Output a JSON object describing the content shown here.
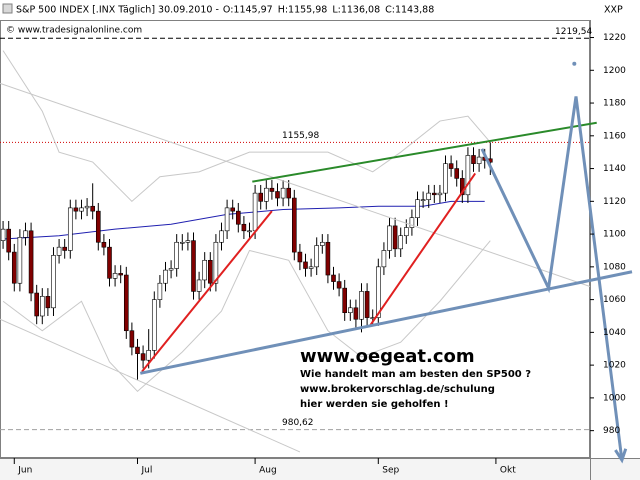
{
  "chart_data": {
    "type": "candlestick",
    "header": {
      "symbol": "S&P 500 INDEX [.INX Täglich] 30.09.2010 -",
      "ohlc": [
        "O:1145,97",
        "H:1155,98",
        "L:1136,08",
        "C:1143,88"
      ],
      "ohlc_colors": [
        "#d00000",
        "#000000",
        "#000000",
        "#008000"
      ],
      "corner": "XXP",
      "copyright": "© www.tradesignalonline.com"
    },
    "x": [
      0,
      1,
      2,
      3,
      4,
      5,
      6,
      7,
      8,
      9,
      10,
      11,
      12,
      13,
      14,
      15,
      16,
      17,
      18,
      19,
      20,
      21,
      22,
      23,
      24,
      25,
      26,
      27,
      28,
      29,
      30,
      31,
      32,
      33,
      34,
      35,
      36,
      37,
      38,
      39,
      40,
      41,
      42,
      43,
      44,
      45,
      46,
      47,
      48,
      49,
      50,
      51,
      52,
      53,
      54,
      55,
      56,
      57,
      58,
      59,
      60,
      61,
      62,
      63,
      64,
      65,
      66,
      67,
      68,
      69,
      70,
      71,
      72,
      73,
      74,
      75,
      76,
      77,
      78,
      79,
      80,
      81,
      82,
      83,
      84,
      85,
      86,
      87
    ],
    "open": [
      1096,
      1103,
      1089,
      1070,
      1098,
      1102,
      1064,
      1050,
      1062,
      1055,
      1087,
      1092,
      1090,
      1116,
      1114,
      1116,
      1117,
      1114,
      1095,
      1092,
      1073,
      1076,
      1075,
      1041,
      1031,
      1027,
      1023,
      1029,
      1060,
      1070,
      1078,
      1079,
      1095,
      1095,
      1096,
      1065,
      1072,
      1084,
      1070,
      1095,
      1102,
      1116,
      1114,
      1106,
      1102,
      1102,
      1125,
      1120,
      1128,
      1126,
      1122,
      1128,
      1122,
      1089,
      1083,
      1079,
      1080,
      1093,
      1095,
      1075,
      1071,
      1067,
      1052,
      1055,
      1048,
      1065,
      1049,
      1049,
      1080,
      1090,
      1105,
      1091,
      1099,
      1104,
      1110,
      1121,
      1121,
      1125,
      1124,
      1125,
      1143,
      1140,
      1134,
      1124,
      1148,
      1143,
      1147,
      1145.97
    ],
    "high": [
      1108,
      1108,
      1094,
      1103,
      1107,
      1107,
      1069,
      1067,
      1067,
      1092,
      1097,
      1097,
      1121,
      1121,
      1121,
      1122,
      1131,
      1119,
      1100,
      1097,
      1081,
      1081,
      1080,
      1046,
      1036,
      1032,
      1042,
      1065,
      1075,
      1083,
      1084,
      1100,
      1100,
      1101,
      1101,
      1077,
      1089,
      1089,
      1100,
      1107,
      1121,
      1121,
      1119,
      1111,
      1107,
      1130,
      1130,
      1133,
      1133,
      1131,
      1133,
      1133,
      1127,
      1094,
      1088,
      1085,
      1098,
      1100,
      1100,
      1080,
      1076,
      1072,
      1060,
      1060,
      1070,
      1070,
      1054,
      1085,
      1095,
      1110,
      1110,
      1104,
      1109,
      1115,
      1126,
      1126,
      1130,
      1130,
      1130,
      1148,
      1148,
      1145,
      1139,
      1153,
      1153,
      1152,
      1152,
      1155.98
    ],
    "low": [
      1091,
      1084,
      1065,
      1065,
      1093,
      1059,
      1045,
      1045,
      1050,
      1050,
      1082,
      1085,
      1085,
      1109,
      1109,
      1111,
      1109,
      1090,
      1087,
      1068,
      1068,
      1070,
      1036,
      1026,
      1011,
      1018,
      1018,
      1024,
      1055,
      1065,
      1073,
      1074,
      1090,
      1090,
      1060,
      1060,
      1067,
      1065,
      1065,
      1090,
      1097,
      1109,
      1101,
      1097,
      1097,
      1097,
      1115,
      1115,
      1121,
      1117,
      1117,
      1117,
      1084,
      1078,
      1074,
      1074,
      1075,
      1088,
      1070,
      1066,
      1062,
      1047,
      1047,
      1043,
      1040,
      1044,
      1044,
      1044,
      1075,
      1085,
      1086,
      1086,
      1094,
      1099,
      1105,
      1116,
      1116,
      1119,
      1119,
      1120,
      1135,
      1129,
      1119,
      1119,
      1138,
      1138,
      1140,
      1136.08
    ],
    "close": [
      1103,
      1089,
      1070,
      1098,
      1102,
      1064,
      1050,
      1062,
      1055,
      1087,
      1092,
      1090,
      1116,
      1114,
      1116,
      1117,
      1114,
      1095,
      1092,
      1073,
      1076,
      1075,
      1041,
      1031,
      1027,
      1023,
      1029,
      1060,
      1070,
      1078,
      1079,
      1095,
      1095,
      1096,
      1065,
      1072,
      1084,
      1070,
      1095,
      1102,
      1116,
      1114,
      1106,
      1102,
      1102,
      1125,
      1120,
      1128,
      1126,
      1122,
      1128,
      1122,
      1089,
      1083,
      1079,
      1080,
      1093,
      1095,
      1075,
      1071,
      1067,
      1052,
      1055,
      1048,
      1065,
      1049,
      1049,
      1080,
      1090,
      1105,
      1091,
      1099,
      1104,
      1110,
      1121,
      1121,
      1125,
      1124,
      1125,
      1143,
      1140,
      1134,
      1124,
      1148,
      1143,
      1147,
      1145,
      1143.88
    ],
    "up_color": "#ffffff",
    "down_color": "#800000",
    "wick_color": "#000000",
    "xlim": [
      -0.55,
      104.8
    ],
    "ylim": [
      963.3,
      1230.7
    ],
    "xticks": [
      {
        "value": 2,
        "label": "Jun"
      },
      {
        "value": 24,
        "label": "Jul"
      },
      {
        "value": 45,
        "label": "Aug"
      },
      {
        "value": 67,
        "label": "Sep"
      },
      {
        "value": 88,
        "label": "Okt"
      }
    ],
    "yticks": [
      980,
      1000,
      1020,
      1040,
      1060,
      1080,
      1100,
      1120,
      1140,
      1160,
      1180,
      1200,
      1220
    ],
    "levels": [
      {
        "value": 1219.54,
        "label": "1219,54",
        "color": "#000000"
      },
      {
        "value": 1155.98,
        "label": "1155,98",
        "color": "#d00000"
      },
      {
        "value": 980.62,
        "label": "980,62",
        "color": "#a0a0a0"
      }
    ],
    "overlays": [
      {
        "color": "#c8c8c8",
        "width": 1,
        "x": [
          0,
          7,
          10,
          16,
          23,
          28,
          35,
          44,
          51,
          58,
          66,
          71,
          78,
          83,
          87
        ],
        "values": [
          1212,
          1175,
          1150,
          1144,
          1120,
          1135,
          1138,
          1150,
          1150,
          1150,
          1138,
          1150,
          1169,
          1172,
          1156
        ]
      },
      {
        "color": "#c8c8c8",
        "width": 1,
        "x": [
          0,
          7,
          14,
          19,
          24,
          32,
          39,
          44,
          51,
          58,
          64,
          71,
          78,
          87
        ],
        "values": [
          1059,
          1041,
          1059,
          1022,
          1004,
          1028,
          1053,
          1090,
          1084,
          1041,
          1025,
          1034,
          1059,
          1096
        ]
      },
      {
        "color": "#2020b0",
        "width": 1,
        "x": [
          0,
          10,
          20,
          30,
          40,
          50,
          60,
          67,
          75,
          80,
          86
        ],
        "values": [
          1097,
          1099,
          1103,
          1106,
          1112,
          1115,
          1116,
          1117,
          1117,
          1120,
          1120
        ]
      }
    ],
    "trendlines": [
      {
        "color": "#c8c8c8",
        "width": 1,
        "x": [
          -0.55,
          104.8
        ],
        "values": [
          1192,
          1068
        ]
      },
      {
        "color": "#c8c8c8",
        "width": 1,
        "x": [
          -0.55,
          53
        ],
        "values": [
          1048,
          967
        ]
      },
      {
        "color": "#e02020",
        "width": 2,
        "x": [
          24.8,
          48
        ],
        "values": [
          1016,
          1114
        ]
      },
      {
        "color": "#e02020",
        "width": 2,
        "x": [
          65.5,
          84.3
        ],
        "values": [
          1044,
          1137
        ]
      },
      {
        "color": "#2a8a2a",
        "width": 2,
        "x": [
          44.5,
          106
        ],
        "values": [
          1132,
          1168
        ]
      },
      {
        "color": "#7090b8",
        "width": 3,
        "x": [
          24.5,
          112.3
        ],
        "values": [
          1015,
          1077
        ]
      },
      {
        "color": "#7090b8",
        "width": 3,
        "x": [
          85.5,
          97.4,
          102.3,
          110.5
        ],
        "values": [
          1152,
          1067,
          1184,
          962
        ],
        "arrow": true
      }
    ],
    "points": [
      {
        "x": 102,
        "value": 1204,
        "color": "#7090b8"
      }
    ],
    "watermark": {
      "title": "www.oegeat.com",
      "lines": [
        "Wie handelt man am besten den SP500 ?",
        "www.brokervorschlag.de/schulung",
        "hier werden sie geholfen !"
      ],
      "color": "#1a22a0"
    }
  }
}
